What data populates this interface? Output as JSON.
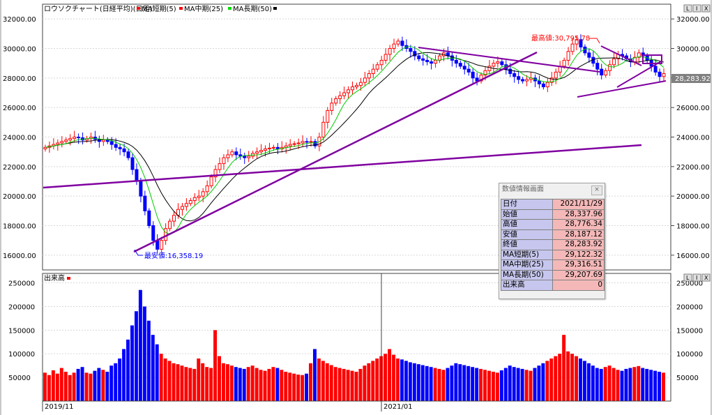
{
  "window": {
    "chart_title": "ロウソクチャート(日経平均)(日足)",
    "buttons": [
      "L",
      "I",
      "X"
    ]
  },
  "legend": {
    "short": "MA短期(5)",
    "mid": "MA中期(25)",
    "long": "MA長期(50)",
    "color_short": "#ff0000",
    "color_mid": "#e00000",
    "color_long": "#00dd00",
    "color_candle_up": "#ff0000",
    "color_candle_down": "#0000ff"
  },
  "price_axis": {
    "ticks": [
      "32000.00",
      "30000.00",
      "28000.00",
      "26000.00",
      "24000.00",
      "22000.00",
      "20000.00",
      "18000.00",
      "16000.00"
    ],
    "current_price": "28,283.92"
  },
  "volume_axis": {
    "label": "出来高",
    "ticks": [
      "250000",
      "200000",
      "150000",
      "100000",
      "50000"
    ]
  },
  "date_axis": {
    "labels": [
      "2019/11",
      "2021/01"
    ]
  },
  "annotations": {
    "high": "最高値:30,795.78",
    "low": "最安値:16,358.19"
  },
  "info_panel": {
    "title": "数値情報画面",
    "close_label": "×",
    "rows": [
      {
        "key": "日付",
        "value": "2021/11/29"
      },
      {
        "key": "始値",
        "value": "28,337.96"
      },
      {
        "key": "高値",
        "value": "28,776.34"
      },
      {
        "key": "安値",
        "value": "28,187.12"
      },
      {
        "key": "終値",
        "value": "28,283.92"
      },
      {
        "key": "MA短期(5)",
        "value": "29,122.32"
      },
      {
        "key": "MA中期(25)",
        "value": "29,316.51"
      },
      {
        "key": "MA長期(50)",
        "value": "29,207.69"
      },
      {
        "key": "出来高",
        "value": "0"
      }
    ]
  },
  "chart_data": {
    "type": "candlestick",
    "price_range": [
      15000,
      33000
    ],
    "volume_range": [
      0,
      270000
    ],
    "close_series": [
      23300,
      23400,
      23500,
      23600,
      23700,
      23800,
      23900,
      24000,
      23950,
      23800,
      23900,
      24000,
      23850,
      23700,
      23800,
      23700,
      23500,
      23300,
      23200,
      23000,
      22600,
      21800,
      21000,
      20000,
      19000,
      18000,
      17000,
      16400,
      17000,
      17800,
      18300,
      18700,
      19100,
      19300,
      19500,
      19700,
      19900,
      20000,
      20300,
      20700,
      21300,
      21800,
      22200,
      22600,
      22800,
      23000,
      22800,
      22700,
      22600,
      22700,
      22900,
      23000,
      23100,
      23200,
      23250,
      23300,
      23200,
      23300,
      23400,
      23500,
      23550,
      23600,
      23700,
      23650,
      23700,
      23400,
      24000,
      25000,
      25800,
      26300,
      26600,
      26800,
      27000,
      27200,
      27400,
      27500,
      27700,
      28000,
      28300,
      28600,
      28900,
      29200,
      29600,
      30000,
      30300,
      30500,
      30200,
      30000,
      29800,
      29500,
      29300,
      29200,
      29100,
      29000,
      29200,
      29500,
      29700,
      29500,
      29200,
      29000,
      28800,
      28600,
      28400,
      28000,
      27800,
      28200,
      28500,
      28800,
      29000,
      29100,
      28900,
      28600,
      28300,
      28100,
      27900,
      27800,
      27900,
      28000,
      27800,
      27600,
      27400,
      27700,
      28000,
      28400,
      28800,
      29200,
      29800,
      30300,
      30600,
      30100,
      29700,
      29400,
      29000,
      28600,
      28200,
      28500,
      28900,
      29300,
      29600,
      29500,
      29300,
      29100,
      29400,
      29700,
      29500,
      29200,
      28800,
      28400,
      28100,
      28300
    ],
    "volume_series": [
      60000,
      55000,
      65000,
      58000,
      70000,
      62000,
      55000,
      60000,
      68000,
      72000,
      60000,
      58000,
      64000,
      70000,
      66000,
      62000,
      75000,
      80000,
      90000,
      110000,
      130000,
      160000,
      190000,
      235000,
      200000,
      170000,
      140000,
      120000,
      100000,
      90000,
      85000,
      80000,
      78000,
      75000,
      72000,
      70000,
      68000,
      90000,
      80000,
      72000,
      70000,
      150000,
      95000,
      80000,
      78000,
      75000,
      72000,
      70000,
      68000,
      72000,
      75000,
      70000,
      66000,
      64000,
      68000,
      72000,
      70000,
      66000,
      62000,
      60000,
      58000,
      56000,
      55000,
      58000,
      80000,
      110000,
      90000,
      85000,
      80000,
      76000,
      72000,
      70000,
      68000,
      66000,
      64000,
      62000,
      68000,
      75000,
      80000,
      85000,
      90000,
      95000,
      100000,
      110000,
      98000,
      90000,
      88000,
      85000,
      82000,
      80000,
      78000,
      76000,
      74000,
      72000,
      70000,
      68000,
      66000,
      70000,
      75000,
      80000,
      78000,
      76000,
      74000,
      72000,
      70000,
      68000,
      66000,
      64000,
      62000,
      60000,
      65000,
      70000,
      75000,
      72000,
      70000,
      68000,
      66000,
      64000,
      70000,
      75000,
      80000,
      85000,
      90000,
      95000,
      100000,
      140000,
      105000,
      100000,
      95000,
      90000,
      85000,
      80000,
      75000,
      70000,
      68000,
      72000,
      75000,
      70000,
      66000,
      64000,
      68000,
      70000,
      72000,
      74000,
      70000,
      68000,
      66000,
      64000,
      62000,
      60000
    ]
  }
}
